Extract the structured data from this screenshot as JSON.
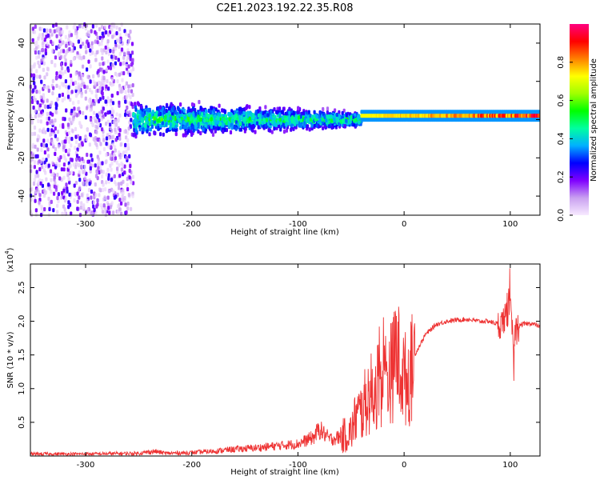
{
  "chart_data": [
    {
      "type": "heatmap",
      "title": "C2E1.2023.192.22.35.R08",
      "xlabel": "Height of straight line (km)",
      "ylabel": "Frequency (Hz)",
      "xlim": [
        -352,
        128
      ],
      "ylim": [
        -50,
        50
      ],
      "x_ticks": [
        -300,
        -200,
        -100,
        0,
        100
      ],
      "y_ticks": [
        -40,
        -20,
        0,
        20,
        40
      ],
      "colorbar": {
        "label": "Normalized spectral amplitude",
        "range": [
          0,
          1
        ],
        "ticks": [
          "0.0",
          "0.2",
          "0.4",
          "0.6",
          "0.8"
        ],
        "colormap": [
          "#f7eaff",
          "#c9a0f0",
          "#7f00ff",
          "#0000ff",
          "#00b0ff",
          "#00ffa0",
          "#00ff00",
          "#a0ff00",
          "#ffff00",
          "#ff8000",
          "#ff0000",
          "#ff0080"
        ]
      },
      "regions": [
        {
          "x_range": [
            -352,
            -255
          ],
          "freq_range": [
            -50,
            50
          ],
          "amplitude": [
            0.02,
            0.25
          ],
          "pattern": "broadband speckle"
        },
        {
          "x_range": [
            -255,
            -40
          ],
          "freq_center": 0,
          "freq_halfwidth": [
            12,
            5
          ],
          "amplitude": [
            0.1,
            0.6
          ],
          "pattern": "narrowing band"
        },
        {
          "x_range": [
            -40,
            128
          ],
          "freq_center": 2,
          "freq_halfwidth": 2,
          "amplitude": [
            0.5,
            1.0
          ],
          "pattern": "narrow carrier line"
        }
      ]
    },
    {
      "type": "line",
      "xlabel": "Height of straight line (km)",
      "ylabel": "SNR (10 * v/v)",
      "y_multiplier": "(x10^4)",
      "multiplier_base": "(x10",
      "multiplier_exp": "4",
      "multiplier_close": ")",
      "xlim": [
        -352,
        128
      ],
      "ylim": [
        0,
        2.85
      ],
      "x_ticks": [
        -300,
        -200,
        -100,
        0,
        100
      ],
      "y_ticks": [
        "0.5",
        "1.0",
        "1.5",
        "2.0",
        "2.5"
      ],
      "color": "#ee3333",
      "series": [
        {
          "x": [
            -352,
            -300,
            -250,
            -235,
            -225,
            -200,
            -180,
            -160,
            -140,
            -120,
            -100,
            -85,
            -80,
            -70,
            -60,
            -50,
            -45,
            -40,
            -35,
            -30,
            -25,
            -20,
            -15,
            -10,
            -8,
            -5,
            0,
            5,
            10,
            20,
            30,
            40,
            50,
            60,
            70,
            80,
            90,
            95,
            100,
            103,
            105,
            110,
            120,
            128
          ],
          "y": [
            0.03,
            0.03,
            0.04,
            0.07,
            0.04,
            0.05,
            0.07,
            0.1,
            0.12,
            0.15,
            0.18,
            0.28,
            0.4,
            0.25,
            0.28,
            0.35,
            0.6,
            0.65,
            0.85,
            0.95,
            1.05,
            1.15,
            1.2,
            1.3,
            1.65,
            1.4,
            1.15,
            1.15,
            1.5,
            1.8,
            1.95,
            2.0,
            2.02,
            2.03,
            2.0,
            2.0,
            1.95,
            2.05,
            2.2,
            1.6,
            1.85,
            1.95,
            1.97,
            1.92
          ]
        }
      ]
    }
  ]
}
